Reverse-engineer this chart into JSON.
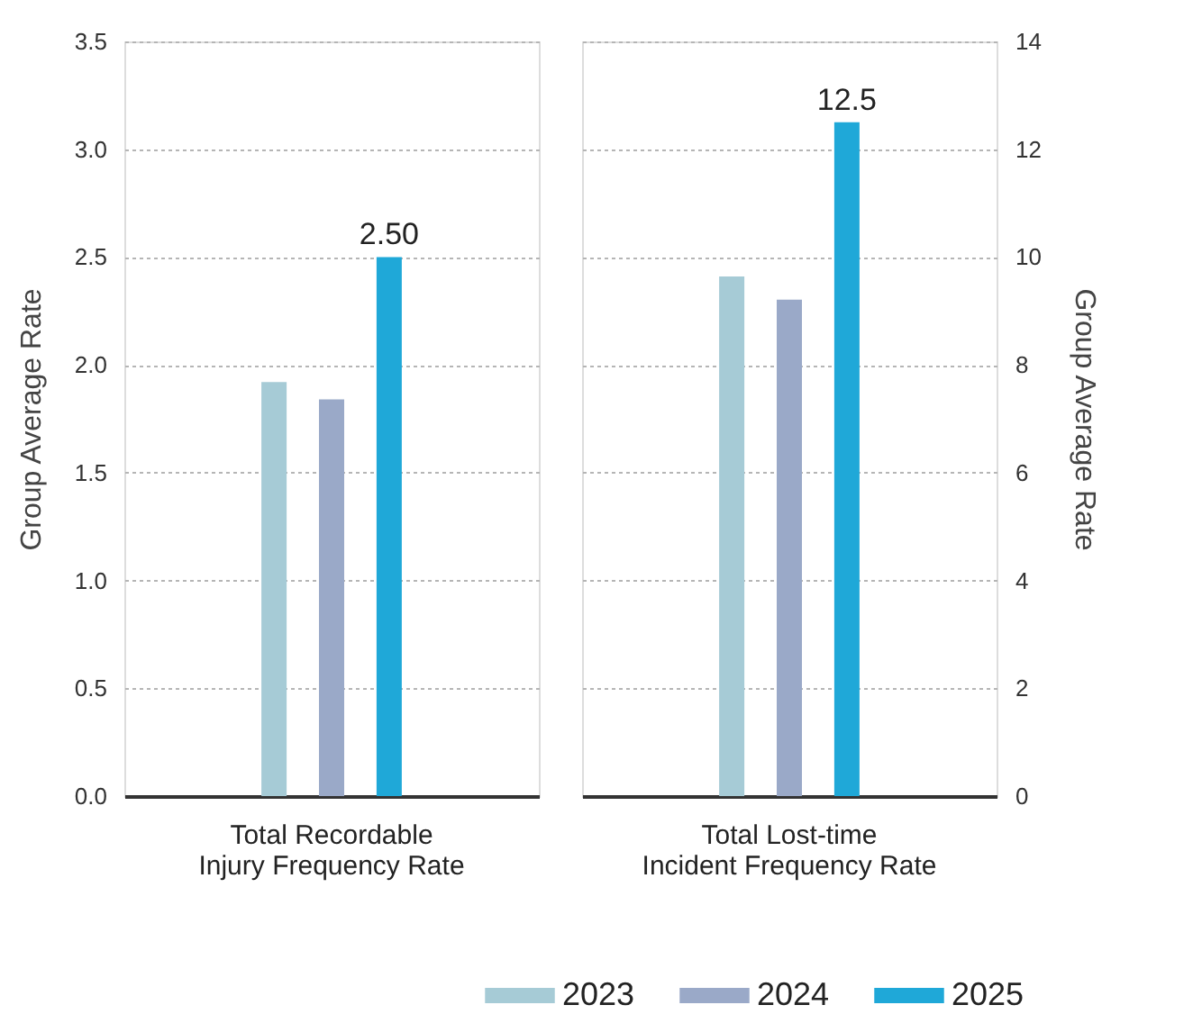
{
  "chart_data": [
    {
      "type": "bar",
      "categories": [
        "Total Recordable Injury Frequency Rate"
      ],
      "ylabel": "Group Average Rate",
      "ylim": [
        0,
        3.5
      ],
      "legend": "bottom right",
      "yticks": [
        {
          "value": 0,
          "label": "0.0"
        },
        {
          "value": 0.5,
          "label": "0.5"
        },
        {
          "value": 1,
          "label": "1.0"
        },
        {
          "value": 1.5,
          "label": "1.5"
        },
        {
          "value": 2,
          "label": "2.0"
        },
        {
          "value": 2.5,
          "label": "2.5"
        },
        {
          "value": 3,
          "label": "3.0"
        },
        {
          "value": 3.5,
          "label": "3.5"
        }
      ],
      "grid": "y",
      "series": [
        {
          "name": "2023",
          "color": "#a6cbd6",
          "values": [
            1.92
          ],
          "value_labels": [
            null
          ]
        },
        {
          "name": "2024",
          "color": "#9aa9c8",
          "values": [
            1.84
          ],
          "value_labels": [
            null
          ]
        },
        {
          "name": "2025",
          "color": "#1fa8d8",
          "values": [
            2.5
          ],
          "value_labels": [
            "2.50"
          ]
        }
      ]
    },
    {
      "type": "bar",
      "categories": [
        "Total Lost-time Incident Frequency Rate"
      ],
      "y2label": "Group Average Rate",
      "y2lim": [
        0,
        14
      ],
      "y2ticks": [
        0,
        2,
        4,
        6,
        8,
        10,
        12,
        14
      ],
      "grid": "y",
      "series": [
        {
          "name": "2023",
          "color": "#a6cbd6",
          "values": [
            9.64
          ],
          "value_labels": [
            null
          ],
          "axis": "y2"
        },
        {
          "name": "2024",
          "color": "#9aa9c8",
          "values": [
            9.21
          ],
          "value_labels": [
            null
          ],
          "axis": "y2"
        },
        {
          "name": "2025",
          "color": "#1fa8d8",
          "values": [
            12.5
          ],
          "value_labels": [
            "12.5"
          ],
          "axis": "y2"
        }
      ]
    }
  ]
}
